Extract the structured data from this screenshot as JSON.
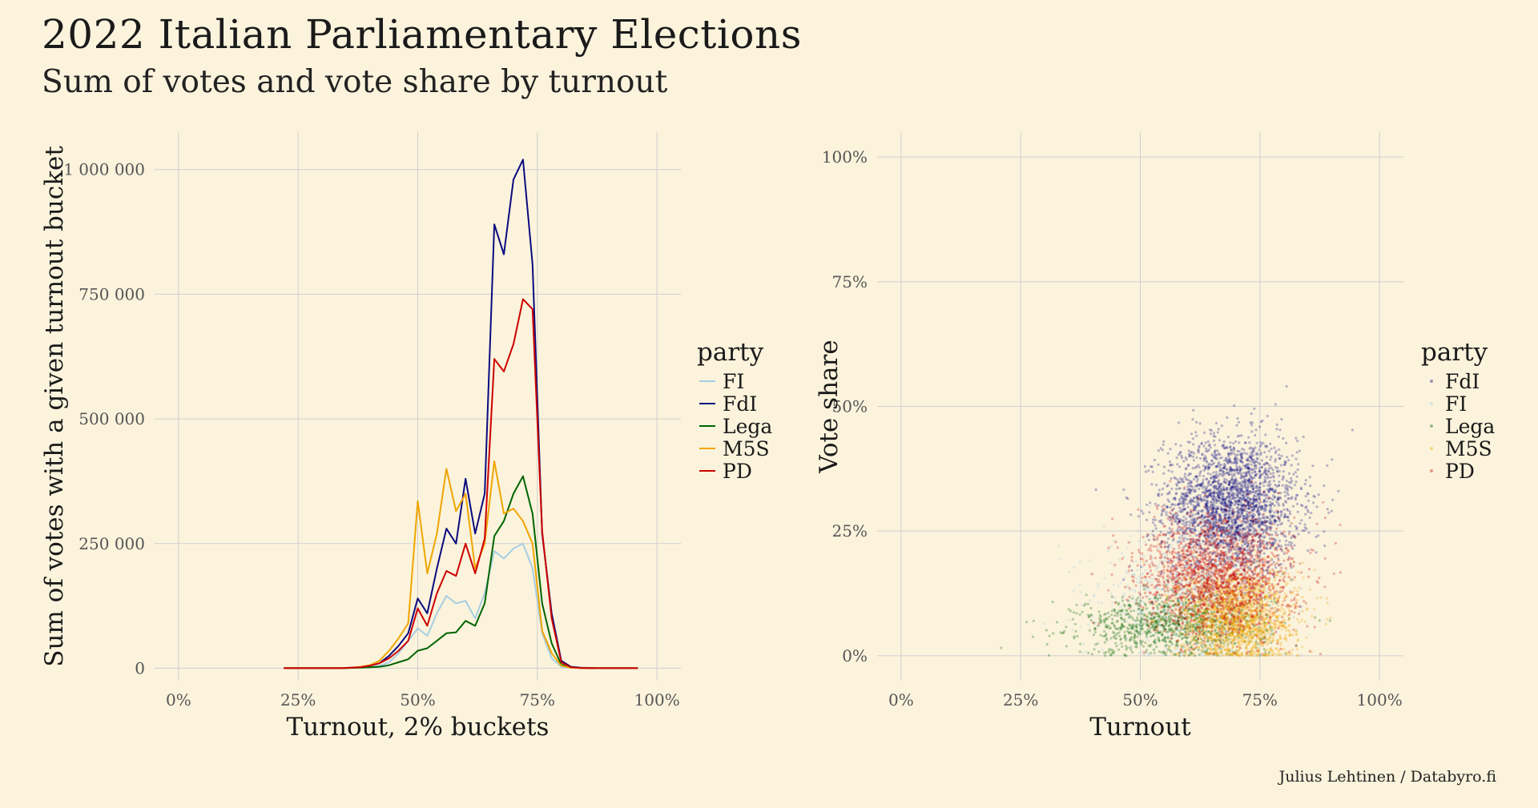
{
  "header": {
    "title": "2022 Italian Parliamentary Elections",
    "subtitle": "Sum of votes and vote share by turnout"
  },
  "caption": "Julius Lehtinen / Databyro.fi",
  "chart_data": [
    {
      "type": "line",
      "xlabel": "Turnout, 2% buckets",
      "ylabel": "Sum of votes with a given turnout bucket",
      "xlim": [
        -0.05,
        1.05
      ],
      "ylim": [
        -25000,
        1075000
      ],
      "xticks": [
        0,
        0.25,
        0.5,
        0.75,
        1.0
      ],
      "xtick_labels": [
        "0%",
        "25%",
        "50%",
        "75%",
        "100%"
      ],
      "yticks": [
        0,
        250000,
        500000,
        750000,
        1000000
      ],
      "ytick_labels": [
        "0",
        "250 000",
        "500 000",
        "750 000",
        "1 000 000"
      ],
      "grid": true,
      "legend": {
        "title": "party",
        "placement": "right"
      },
      "x": [
        0.22,
        0.24,
        0.26,
        0.28,
        0.3,
        0.32,
        0.34,
        0.36,
        0.38,
        0.4,
        0.42,
        0.44,
        0.46,
        0.48,
        0.5,
        0.52,
        0.54,
        0.56,
        0.58,
        0.6,
        0.62,
        0.64,
        0.66,
        0.68,
        0.7,
        0.72,
        0.74,
        0.76,
        0.78,
        0.8,
        0.82,
        0.84,
        0.86,
        0.88,
        0.9,
        0.92,
        0.94,
        0.96
      ],
      "series": [
        {
          "name": "FI",
          "color": "#a6cee3",
          "values": [
            0,
            0,
            0,
            0,
            0,
            0,
            0,
            500,
            1000,
            2000,
            5000,
            12000,
            30000,
            55000,
            80000,
            65000,
            110000,
            145000,
            130000,
            135000,
            100000,
            150000,
            235000,
            220000,
            240000,
            250000,
            200000,
            70000,
            20000,
            3000,
            1000,
            500,
            0,
            0,
            0,
            0,
            0,
            0
          ]
        },
        {
          "name": "FdI",
          "color": "#0a0a80",
          "values": [
            0,
            0,
            0,
            0,
            0,
            0,
            0,
            1000,
            2000,
            5000,
            10000,
            25000,
            45000,
            70000,
            140000,
            110000,
            200000,
            280000,
            250000,
            380000,
            270000,
            350000,
            890000,
            830000,
            980000,
            1020000,
            810000,
            270000,
            110000,
            15000,
            3000,
            1000,
            500,
            0,
            0,
            0,
            0,
            0
          ]
        },
        {
          "name": "Lega",
          "color": "#006400",
          "values": [
            0,
            0,
            0,
            0,
            0,
            0,
            0,
            500,
            1000,
            2000,
            3000,
            6000,
            12000,
            18000,
            35000,
            40000,
            55000,
            70000,
            72000,
            95000,
            85000,
            130000,
            265000,
            295000,
            350000,
            385000,
            310000,
            130000,
            50000,
            7000,
            2000,
            500,
            0,
            0,
            0,
            0,
            0,
            0
          ]
        },
        {
          "name": "M5S",
          "color": "#f0a500",
          "values": [
            0,
            0,
            0,
            0,
            0,
            0,
            0,
            1000,
            3000,
            6000,
            15000,
            35000,
            60000,
            90000,
            335000,
            190000,
            270000,
            400000,
            315000,
            350000,
            200000,
            250000,
            415000,
            310000,
            320000,
            295000,
            250000,
            75000,
            30000,
            5000,
            1000,
            500,
            0,
            0,
            0,
            0,
            0,
            0
          ]
        },
        {
          "name": "PD",
          "color": "#cc0000",
          "values": [
            0,
            0,
            0,
            0,
            0,
            0,
            0,
            1000,
            2000,
            5000,
            10000,
            20000,
            35000,
            55000,
            120000,
            85000,
            150000,
            195000,
            185000,
            250000,
            190000,
            260000,
            620000,
            595000,
            650000,
            740000,
            720000,
            275000,
            100000,
            12000,
            2000,
            500,
            0,
            0,
            0,
            0,
            0,
            0
          ]
        }
      ]
    },
    {
      "type": "scatter",
      "xlabel": "Turnout",
      "ylabel": "Vote share",
      "xlim": [
        -0.05,
        1.05
      ],
      "ylim": [
        -0.05,
        1.05
      ],
      "xticks": [
        0,
        0.25,
        0.5,
        0.75,
        1.0
      ],
      "xtick_labels": [
        "0%",
        "25%",
        "50%",
        "75%",
        "100%"
      ],
      "yticks": [
        0,
        0.25,
        0.5,
        0.75,
        1.0
      ],
      "ytick_labels": [
        "0%",
        "25%",
        "50%",
        "75%",
        "100%"
      ],
      "grid": true,
      "legend": {
        "title": "party",
        "placement": "right"
      },
      "series": [
        {
          "name": "FdI",
          "color": "#0a0a80",
          "center": [
            0.69,
            0.3
          ],
          "spread": [
            0.07,
            0.07
          ],
          "n": 2600
        },
        {
          "name": "FI",
          "color": "#a6cee3",
          "center": [
            0.6,
            0.12
          ],
          "spread": [
            0.09,
            0.06
          ],
          "n": 900
        },
        {
          "name": "Lega",
          "color": "#006400",
          "center": [
            0.57,
            0.06
          ],
          "spread": [
            0.1,
            0.03
          ],
          "n": 1000
        },
        {
          "name": "M5S",
          "color": "#f0a500",
          "center": [
            0.7,
            0.08
          ],
          "spread": [
            0.06,
            0.05
          ],
          "n": 1900
        },
        {
          "name": "PD",
          "color": "#cc0000",
          "center": [
            0.66,
            0.16
          ],
          "spread": [
            0.08,
            0.06
          ],
          "n": 1800
        }
      ]
    }
  ]
}
